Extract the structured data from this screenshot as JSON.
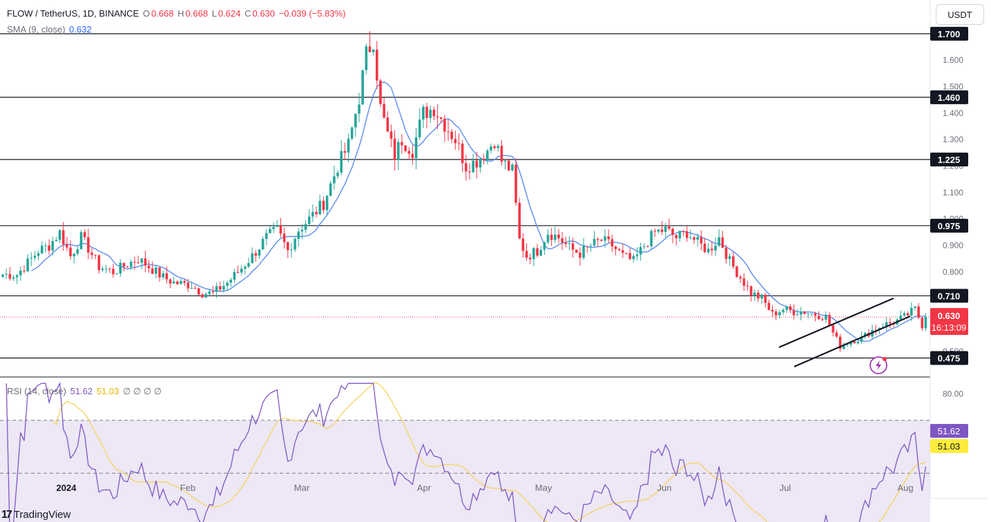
{
  "header": {
    "symbol": "FLOW / TetherUS, 1D, BINANCE",
    "o_label": "O",
    "o": "0.668",
    "h_label": "H",
    "h": "0.668",
    "l_label": "L",
    "l": "0.624",
    "c_label": "C",
    "c": "0.630",
    "change": "−0.039 (−5.83%)",
    "sma_label": "SMA (9, close)",
    "sma_value": "0.632",
    "rsi_label": "RSI (14, close)",
    "rsi_value": "51.62",
    "rsi_ma_value": "51.03",
    "rsi_extra": "∅ ∅ ∅ ∅"
  },
  "currency": "USDT",
  "brand": "TradingView",
  "colors": {
    "up": "#26a69a",
    "down": "#f23645",
    "sma": "#5b8def",
    "rsi": "#7e57c2",
    "rsi_ma": "#f2d45c",
    "rsi_band": "#ede7f6",
    "label_dark": "#131722",
    "label_blue": "#2962ff",
    "label_red": "#f23645"
  },
  "chart_data": [
    {
      "type": "candlestick",
      "title": "FLOW / TetherUS, 1D, BINANCE",
      "x_labels": [
        "2024",
        "Feb",
        "Mar",
        "Apr",
        "May",
        "Jun",
        "Jul",
        "Aug"
      ],
      "y_ticks": [
        0.5,
        0.6,
        0.7,
        0.8,
        0.9,
        1.0,
        1.1,
        1.2,
        1.3,
        1.4,
        1.5,
        1.6
      ],
      "y_tick_labels": [
        "0.500",
        "0.600",
        "0.700",
        "0.800",
        "0.900",
        "1.000",
        "1.100",
        "1.200",
        "1.300",
        "1.400",
        "1.500",
        "1.600"
      ],
      "ylim": [
        0.43,
        1.72
      ],
      "horizontal_levels": [
        {
          "label": "1.700",
          "value": 1.7
        },
        {
          "label": "1.460",
          "value": 1.46
        },
        {
          "label": "1.225",
          "value": 1.225
        },
        {
          "label": "0.975",
          "value": 0.975
        },
        {
          "label": "0.710",
          "value": 0.71
        },
        {
          "label": "0.475",
          "value": 0.475
        }
      ],
      "current_price": {
        "label": "0.630",
        "value": 0.63,
        "countdown": "16:13:09"
      },
      "sma_label": {
        "label": "0.632",
        "value": 0.632
      },
      "close_path": [
        [
          0,
          0.79
        ],
        [
          4,
          0.79
        ],
        [
          10,
          0.88
        ],
        [
          13,
          0.9
        ],
        [
          16,
          0.95
        ],
        [
          19,
          0.86
        ],
        [
          22,
          0.93
        ],
        [
          24,
          0.89
        ],
        [
          27,
          0.82
        ],
        [
          31,
          0.8
        ],
        [
          35,
          0.83
        ],
        [
          38,
          0.85
        ],
        [
          41,
          0.82
        ],
        [
          45,
          0.78
        ],
        [
          48,
          0.76
        ],
        [
          53,
          0.75
        ],
        [
          56,
          0.72
        ],
        [
          59,
          0.72
        ],
        [
          63,
          0.76
        ],
        [
          66,
          0.8
        ],
        [
          70,
          0.86
        ],
        [
          74,
          0.93
        ],
        [
          77,
          0.96
        ],
        [
          80,
          0.88
        ],
        [
          83,
          0.96
        ],
        [
          86,
          1.0
        ],
        [
          90,
          1.06
        ],
        [
          94,
          1.2
        ],
        [
          97,
          1.28
        ],
        [
          100,
          1.46
        ],
        [
          102,
          1.62
        ],
        [
          104,
          1.68
        ],
        [
          106,
          1.42
        ],
        [
          108,
          1.32
        ],
        [
          110,
          1.24
        ],
        [
          112,
          1.3
        ],
        [
          115,
          1.26
        ],
        [
          118,
          1.4
        ],
        [
          121,
          1.42
        ],
        [
          124,
          1.36
        ],
        [
          127,
          1.3
        ],
        [
          130,
          1.2
        ],
        [
          133,
          1.22
        ],
        [
          136,
          1.26
        ],
        [
          138,
          1.3
        ],
        [
          140,
          1.22
        ],
        [
          143,
          1.18
        ],
        [
          145,
          0.92
        ],
        [
          147,
          0.86
        ],
        [
          150,
          0.88
        ],
        [
          153,
          0.95
        ],
        [
          156,
          0.93
        ],
        [
          159,
          0.89
        ],
        [
          162,
          0.87
        ],
        [
          165,
          0.9
        ],
        [
          168,
          0.92
        ],
        [
          171,
          0.9
        ],
        [
          174,
          0.86
        ],
        [
          177,
          0.84
        ],
        [
          180,
          0.9
        ],
        [
          183,
          0.95
        ],
        [
          186,
          0.96
        ],
        [
          189,
          0.93
        ],
        [
          192,
          0.95
        ],
        [
          195,
          0.91
        ],
        [
          198,
          0.88
        ],
        [
          201,
          0.93
        ],
        [
          204,
          0.84
        ],
        [
          207,
          0.78
        ],
        [
          210,
          0.72
        ],
        [
          213,
          0.7
        ],
        [
          216,
          0.64
        ],
        [
          219,
          0.66
        ],
        [
          222,
          0.65
        ],
        [
          225,
          0.65
        ],
        [
          228,
          0.64
        ],
        [
          231,
          0.63
        ],
        [
          233,
          0.57
        ],
        [
          235,
          0.52
        ],
        [
          238,
          0.54
        ],
        [
          241,
          0.55
        ],
        [
          244,
          0.58
        ],
        [
          247,
          0.6
        ],
        [
          250,
          0.61
        ],
        [
          253,
          0.63
        ],
        [
          256,
          0.66
        ],
        [
          258,
          0.6
        ],
        [
          259,
          0.63
        ]
      ]
    },
    {
      "type": "line",
      "title": "RSI (14, close)",
      "y_ticks": [
        80.0
      ],
      "y_tick_labels": [
        "80.00"
      ],
      "band": [
        30,
        70
      ],
      "ylim": [
        25,
        85
      ],
      "series": [
        {
          "name": "RSI",
          "last": "51.62"
        },
        {
          "name": "RSI-based MA",
          "last": "51.03"
        }
      ]
    }
  ]
}
